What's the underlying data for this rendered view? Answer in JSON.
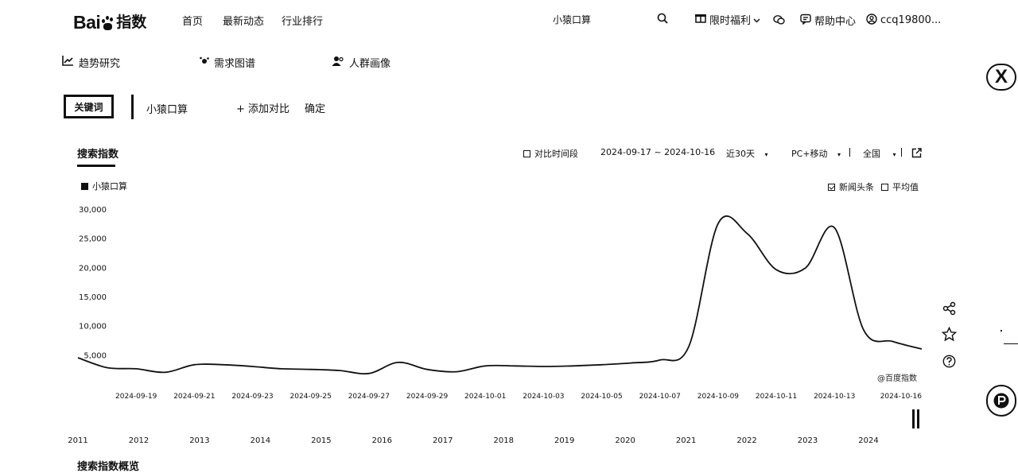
{
  "header": {
    "logo_text": "Bai",
    "logo_text_zh": "指数",
    "nav": [
      "首页",
      "最新动态",
      "行业排行"
    ],
    "search_value": "小猿口算",
    "benefit_label": "限时福利",
    "help_label": "帮助中心",
    "user_name": "ccq19800..."
  },
  "tabs": [
    {
      "label": "趋势研究",
      "icon": "trend-icon"
    },
    {
      "label": "需求图谱",
      "icon": "graph-icon"
    },
    {
      "label": "人群画像",
      "icon": "people-icon"
    }
  ],
  "keyword_bar": {
    "keyword_tag": "关键词",
    "keyword": "小猿口算",
    "add_compare": "+ 添加对比",
    "confirm": "确定"
  },
  "toolbar": {
    "section_title": "搜索指数",
    "compare_period": "对比时间段",
    "date_range": "2024-09-17 ~ 2024-10-16",
    "days": "近30天",
    "device": "PC+移动",
    "region": "全国",
    "news_label": "新闻头条",
    "avg_label": "平均值",
    "news_checked": true,
    "avg_checked": false
  },
  "chart_data": {
    "type": "line",
    "series": [
      {
        "name": "小猿口算",
        "x": [
          "2024-09-17",
          "2024-09-18",
          "2024-09-19",
          "2024-09-20",
          "2024-09-21",
          "2024-09-22",
          "2024-09-23",
          "2024-09-24",
          "2024-09-25",
          "2024-09-26",
          "2024-09-27",
          "2024-09-28",
          "2024-09-29",
          "2024-09-30",
          "2024-10-01",
          "2024-10-02",
          "2024-10-03",
          "2024-10-04",
          "2024-10-05",
          "2024-10-06",
          "2024-10-07",
          "2024-10-08",
          "2024-10-09",
          "2024-10-10",
          "2024-10-11",
          "2024-10-12",
          "2024-10-13",
          "2024-10-14",
          "2024-10-15",
          "2024-10-16"
        ],
        "values": [
          4500,
          2800,
          2600,
          2000,
          3300,
          3300,
          3000,
          2600,
          2500,
          2300,
          1800,
          3700,
          2500,
          2100,
          3100,
          3100,
          3000,
          3100,
          3300,
          3600,
          4100,
          6500,
          27500,
          25800,
          19600,
          19900,
          26800,
          9300,
          7300,
          6000
        ]
      }
    ],
    "x_ticks": [
      "2024-09-19",
      "2024-09-21",
      "2024-09-23",
      "2024-09-25",
      "2024-09-27",
      "2024-09-29",
      "2024-10-01",
      "2024-10-03",
      "2024-10-05",
      "2024-10-07",
      "2024-10-09",
      "2024-10-11",
      "2024-10-13",
      "2024-10-16"
    ],
    "y_ticks": [
      5000,
      10000,
      15000,
      20000,
      25000,
      30000
    ],
    "y_tick_labels": [
      "5,000",
      "10,000",
      "15,000",
      "20,000",
      "25,000",
      "30,000"
    ],
    "ylim": [
      0,
      30000
    ],
    "legend": "小猿口算",
    "legend_position": "top-left",
    "grid": false,
    "watermark": "@百度指数",
    "timeline_years": [
      "2011",
      "2012",
      "2013",
      "2014",
      "2015",
      "2016",
      "2017",
      "2018",
      "2019",
      "2020",
      "2021",
      "2022",
      "2023",
      "2024"
    ]
  },
  "footer": {
    "section_title": "搜索指数概览"
  }
}
